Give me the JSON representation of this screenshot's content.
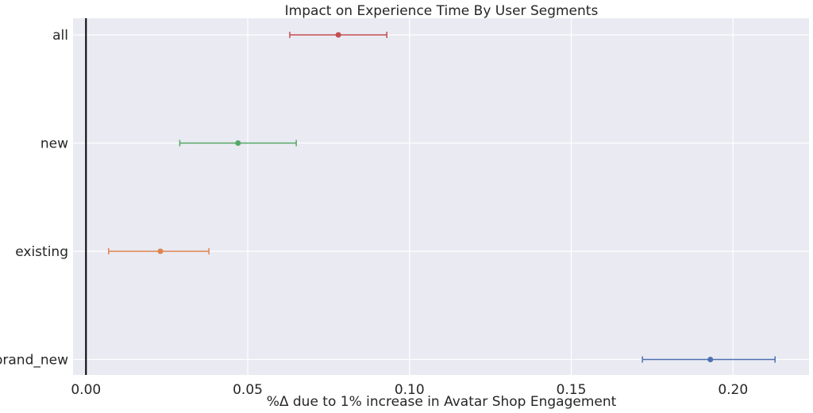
{
  "chart_data": {
    "type": "forest-plot",
    "title": "Impact on Experience Time By User Segments",
    "xlabel": "%Δ due to 1% increase in Avatar Shop Engagement",
    "ylabel": "",
    "xlim": [
      -0.004,
      0.2235
    ],
    "xticks": [
      0.0,
      0.05,
      0.1,
      0.15,
      0.2
    ],
    "xtick_labels": [
      "0.00",
      "0.05",
      "0.10",
      "0.15",
      "0.20"
    ],
    "grid": true,
    "reference_line_x": 0.0,
    "categories": [
      "all",
      "new",
      "existing",
      "brand_new"
    ],
    "series": [
      {
        "category": "all",
        "estimate": 0.078,
        "ci_low": 0.063,
        "ci_high": 0.093,
        "color": "#c44e52"
      },
      {
        "category": "new",
        "estimate": 0.047,
        "ci_low": 0.029,
        "ci_high": 0.065,
        "color": "#55a868"
      },
      {
        "category": "existing",
        "estimate": 0.023,
        "ci_low": 0.007,
        "ci_high": 0.038,
        "color": "#dd8452"
      },
      {
        "category": "brand_new",
        "estimate": 0.193,
        "ci_low": 0.172,
        "ci_high": 0.213,
        "color": "#4c72b0"
      }
    ]
  }
}
